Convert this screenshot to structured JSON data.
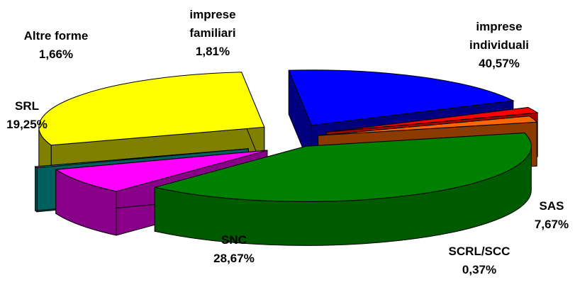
{
  "chart_data": {
    "type": "pie",
    "style": "3d-exploded",
    "slices": [
      {
        "label": [
          "imprese",
          "individuali"
        ],
        "value_text": "40,57%",
        "value": 40.57,
        "color": "#008000",
        "side_color": "#005a00"
      },
      {
        "label": [
          "SAS"
        ],
        "value_text": "7,67%",
        "value": 7.67,
        "color": "#ff00ff",
        "side_color": "#880088"
      },
      {
        "label": [
          "SCRL/SCC"
        ],
        "value_text": "0,37%",
        "value": 0.37,
        "color": "#009999",
        "side_color": "#006060"
      },
      {
        "label": [
          "SNC"
        ],
        "value_text": "28,67%",
        "value": 28.67,
        "color": "#ffff00",
        "side_color": "#808000"
      },
      {
        "label": [
          "SRL"
        ],
        "value_text": "19,25%",
        "value": 19.25,
        "color": "#0000ff",
        "side_color": "#000080"
      },
      {
        "label": [
          "Altre forme"
        ],
        "value_text": "1,66%",
        "value": 1.66,
        "color": "#ff0000",
        "side_color": "#aa0000"
      },
      {
        "label": [
          "imprese",
          "familiari"
        ],
        "value_text": "1,81%",
        "value": 1.81,
        "color": "#ff6600",
        "side_color": "#8b3a00"
      }
    ]
  }
}
